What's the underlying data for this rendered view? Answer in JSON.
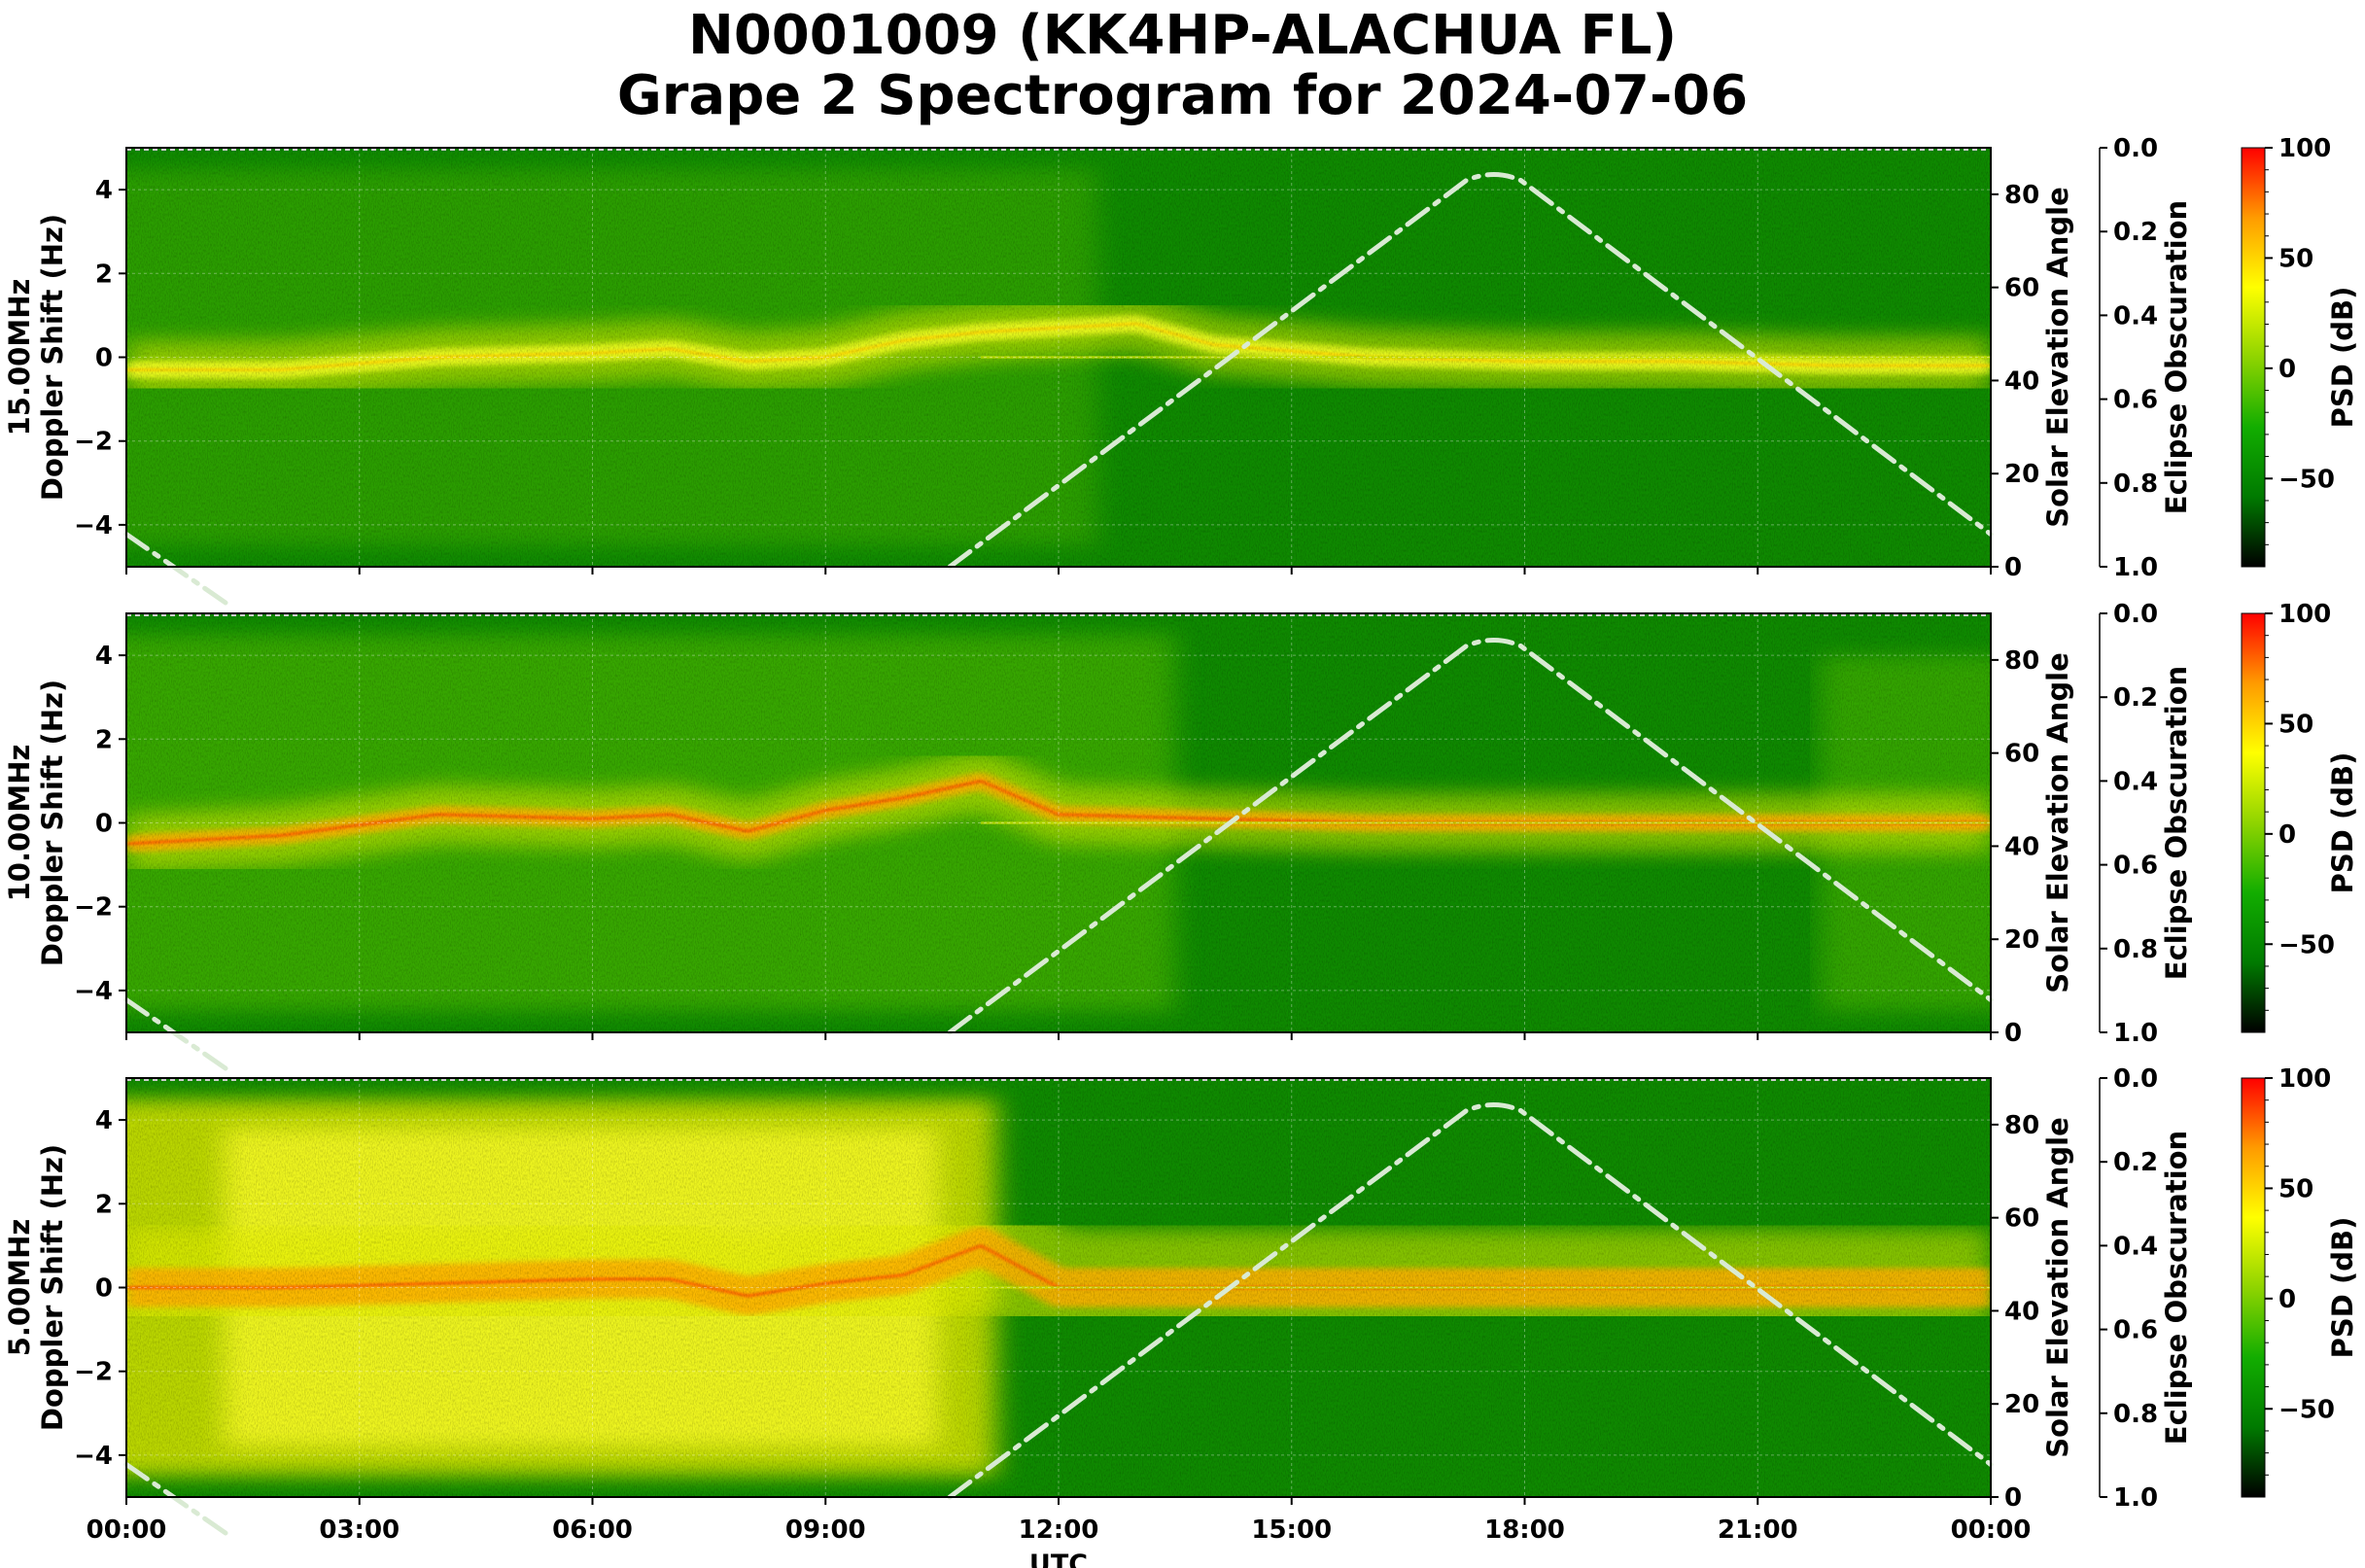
{
  "title_line1": "N0001009 (KK4HP-ALACHUA FL)",
  "title_line2": "Grape 2 Spectrogram for 2024-07-06",
  "x_axis": {
    "label": "UTC",
    "ticks": [
      "00:00",
      "03:00",
      "06:00",
      "09:00",
      "12:00",
      "15:00",
      "18:00",
      "21:00",
      "00:00"
    ],
    "range_hours": [
      0,
      24
    ]
  },
  "colors": {
    "colormap": [
      "#000000",
      "#007a00",
      "#12ad00",
      "#8fd400",
      "#ffff00",
      "#ff9b00",
      "#ff0000"
    ],
    "solar_curve": "#d9ead3",
    "background": "#ffffff"
  },
  "panels": [
    {
      "frequency_label": "15.00MHz",
      "ylabel": "Doppler Shift (Hz)",
      "yticks": [
        "4",
        "2",
        "0",
        "−2",
        "−4"
      ],
      "ylim": [
        -5,
        5
      ],
      "right_label": "Solar Elevation Angle",
      "right_ticks": [
        "80",
        "60",
        "40",
        "20",
        "0"
      ],
      "eclipse_label": "Eclipse Obscuration",
      "eclipse_ticks": [
        "0.0",
        "0.2",
        "0.4",
        "0.6",
        "0.8",
        "1.0"
      ],
      "colorbar_label": "PSD (dB)",
      "colorbar_ticks": [
        "100",
        "50",
        "0",
        "−50"
      ],
      "colorbar_range": [
        -90,
        100
      ]
    },
    {
      "frequency_label": "10.00MHz",
      "ylabel": "Doppler Shift (Hz)",
      "yticks": [
        "4",
        "2",
        "0",
        "−2",
        "−4"
      ],
      "ylim": [
        -5,
        5
      ],
      "right_label": "Solar Elevation Angle",
      "right_ticks": [
        "80",
        "60",
        "40",
        "20",
        "0"
      ],
      "eclipse_label": "Eclipse Obscuration",
      "eclipse_ticks": [
        "0.0",
        "0.2",
        "0.4",
        "0.6",
        "0.8",
        "1.0"
      ],
      "colorbar_label": "PSD (dB)",
      "colorbar_ticks": [
        "100",
        "50",
        "0",
        "−50"
      ],
      "colorbar_range": [
        -90,
        100
      ]
    },
    {
      "frequency_label": "5.00MHz",
      "ylabel": "Doppler Shift (Hz)",
      "yticks": [
        "4",
        "2",
        "0",
        "−2",
        "−4"
      ],
      "ylim": [
        -5,
        5
      ],
      "right_label": "Solar Elevation Angle",
      "right_ticks": [
        "80",
        "60",
        "40",
        "20",
        "0"
      ],
      "eclipse_label": "Eclipse Obscuration",
      "eclipse_ticks": [
        "0.0",
        "0.2",
        "0.4",
        "0.6",
        "0.8",
        "1.0"
      ],
      "colorbar_label": "PSD (dB)",
      "colorbar_ticks": [
        "100",
        "50",
        "0",
        "−50"
      ],
      "colorbar_range": [
        -90,
        100
      ]
    }
  ],
  "chart_data": [
    {
      "type": "heatmap",
      "panel": "15.00MHz",
      "x_range_hours": [
        0,
        24
      ],
      "y_range_hz": [
        -5,
        5
      ],
      "ridge_doppler_hz": {
        "hours": [
          0,
          2,
          4,
          6,
          7,
          8,
          9,
          10,
          11,
          12,
          13,
          14,
          16,
          18,
          20,
          22,
          24
        ],
        "hz": [
          -0.3,
          -0.3,
          0.0,
          0.1,
          0.2,
          -0.1,
          0.0,
          0.4,
          0.6,
          0.7,
          0.8,
          0.3,
          0.0,
          -0.1,
          -0.1,
          -0.2,
          -0.2
        ]
      },
      "solar_elevation_deg": {
        "hours": [
          0,
          10.6,
          17.6,
          24
        ],
        "deg": [
          7,
          0,
          84,
          7
        ]
      }
    },
    {
      "type": "heatmap",
      "panel": "10.00MHz",
      "x_range_hours": [
        0,
        24
      ],
      "y_range_hz": [
        -5,
        5
      ],
      "ridge_doppler_hz": {
        "hours": [
          0,
          2,
          4,
          6,
          7,
          8,
          9,
          10,
          11,
          12,
          14,
          16,
          18,
          20,
          22,
          24
        ],
        "hz": [
          -0.5,
          -0.3,
          0.2,
          0.1,
          0.2,
          -0.2,
          0.3,
          0.6,
          1.0,
          0.2,
          0.1,
          0.0,
          0.0,
          0.0,
          0.0,
          0.0
        ]
      },
      "solar_elevation_deg": {
        "hours": [
          0,
          10.6,
          17.6,
          24
        ],
        "deg": [
          7,
          0,
          84,
          7
        ]
      }
    },
    {
      "type": "heatmap",
      "panel": "5.00MHz",
      "x_range_hours": [
        0,
        24
      ],
      "y_range_hz": [
        -5,
        5
      ],
      "ridge_doppler_hz": {
        "hours": [
          0,
          2,
          4,
          6,
          7,
          8,
          9,
          10,
          11,
          12,
          14,
          16,
          18,
          20,
          22,
          24
        ],
        "hz": [
          0.0,
          0.0,
          0.1,
          0.2,
          0.2,
          -0.2,
          0.1,
          0.3,
          1.0,
          0.0,
          0.0,
          0.0,
          0.0,
          0.0,
          0.0,
          0.0
        ]
      },
      "solar_elevation_deg": {
        "hours": [
          0,
          10.6,
          17.6,
          24
        ],
        "deg": [
          7,
          0,
          84,
          7
        ]
      }
    }
  ]
}
